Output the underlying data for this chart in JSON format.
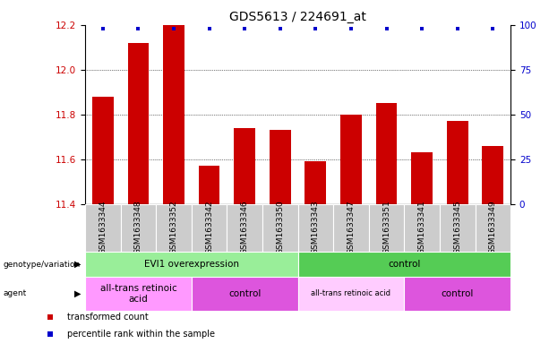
{
  "title": "GDS5613 / 224691_at",
  "samples": [
    "GSM1633344",
    "GSM1633348",
    "GSM1633352",
    "GSM1633342",
    "GSM1633346",
    "GSM1633350",
    "GSM1633343",
    "GSM1633347",
    "GSM1633351",
    "GSM1633341",
    "GSM1633345",
    "GSM1633349"
  ],
  "bar_values": [
    11.88,
    12.12,
    12.2,
    11.57,
    11.74,
    11.73,
    11.59,
    11.8,
    11.85,
    11.63,
    11.77,
    11.66
  ],
  "ylim_left": [
    11.4,
    12.2
  ],
  "ylim_right": [
    0,
    100
  ],
  "yticks_left": [
    11.4,
    11.6,
    11.8,
    12.0,
    12.2
  ],
  "yticks_right": [
    0,
    25,
    50,
    75,
    100
  ],
  "bar_color": "#cc0000",
  "dot_color": "#0000cc",
  "genotype_groups": [
    {
      "label": "EVI1 overexpression",
      "start": 0,
      "end": 6,
      "color": "#99ee99"
    },
    {
      "label": "control",
      "start": 6,
      "end": 12,
      "color": "#55cc55"
    }
  ],
  "agent_groups": [
    {
      "label": "all-trans retinoic\nacid",
      "start": 0,
      "end": 3,
      "color": "#ff99ff"
    },
    {
      "label": "control",
      "start": 3,
      "end": 6,
      "color": "#dd55dd"
    },
    {
      "label": "all-trans retinoic acid",
      "start": 6,
      "end": 9,
      "color": "#ffccff"
    },
    {
      "label": "control",
      "start": 9,
      "end": 12,
      "color": "#dd55dd"
    }
  ],
  "legend_items": [
    {
      "label": "transformed count",
      "color": "#cc0000"
    },
    {
      "label": "percentile rank within the sample",
      "color": "#0000cc"
    }
  ],
  "left_label_color": "#cc0000",
  "right_label_color": "#0000cc",
  "title_fontsize": 10,
  "tick_fontsize": 7.5,
  "sample_fontsize": 6.5
}
